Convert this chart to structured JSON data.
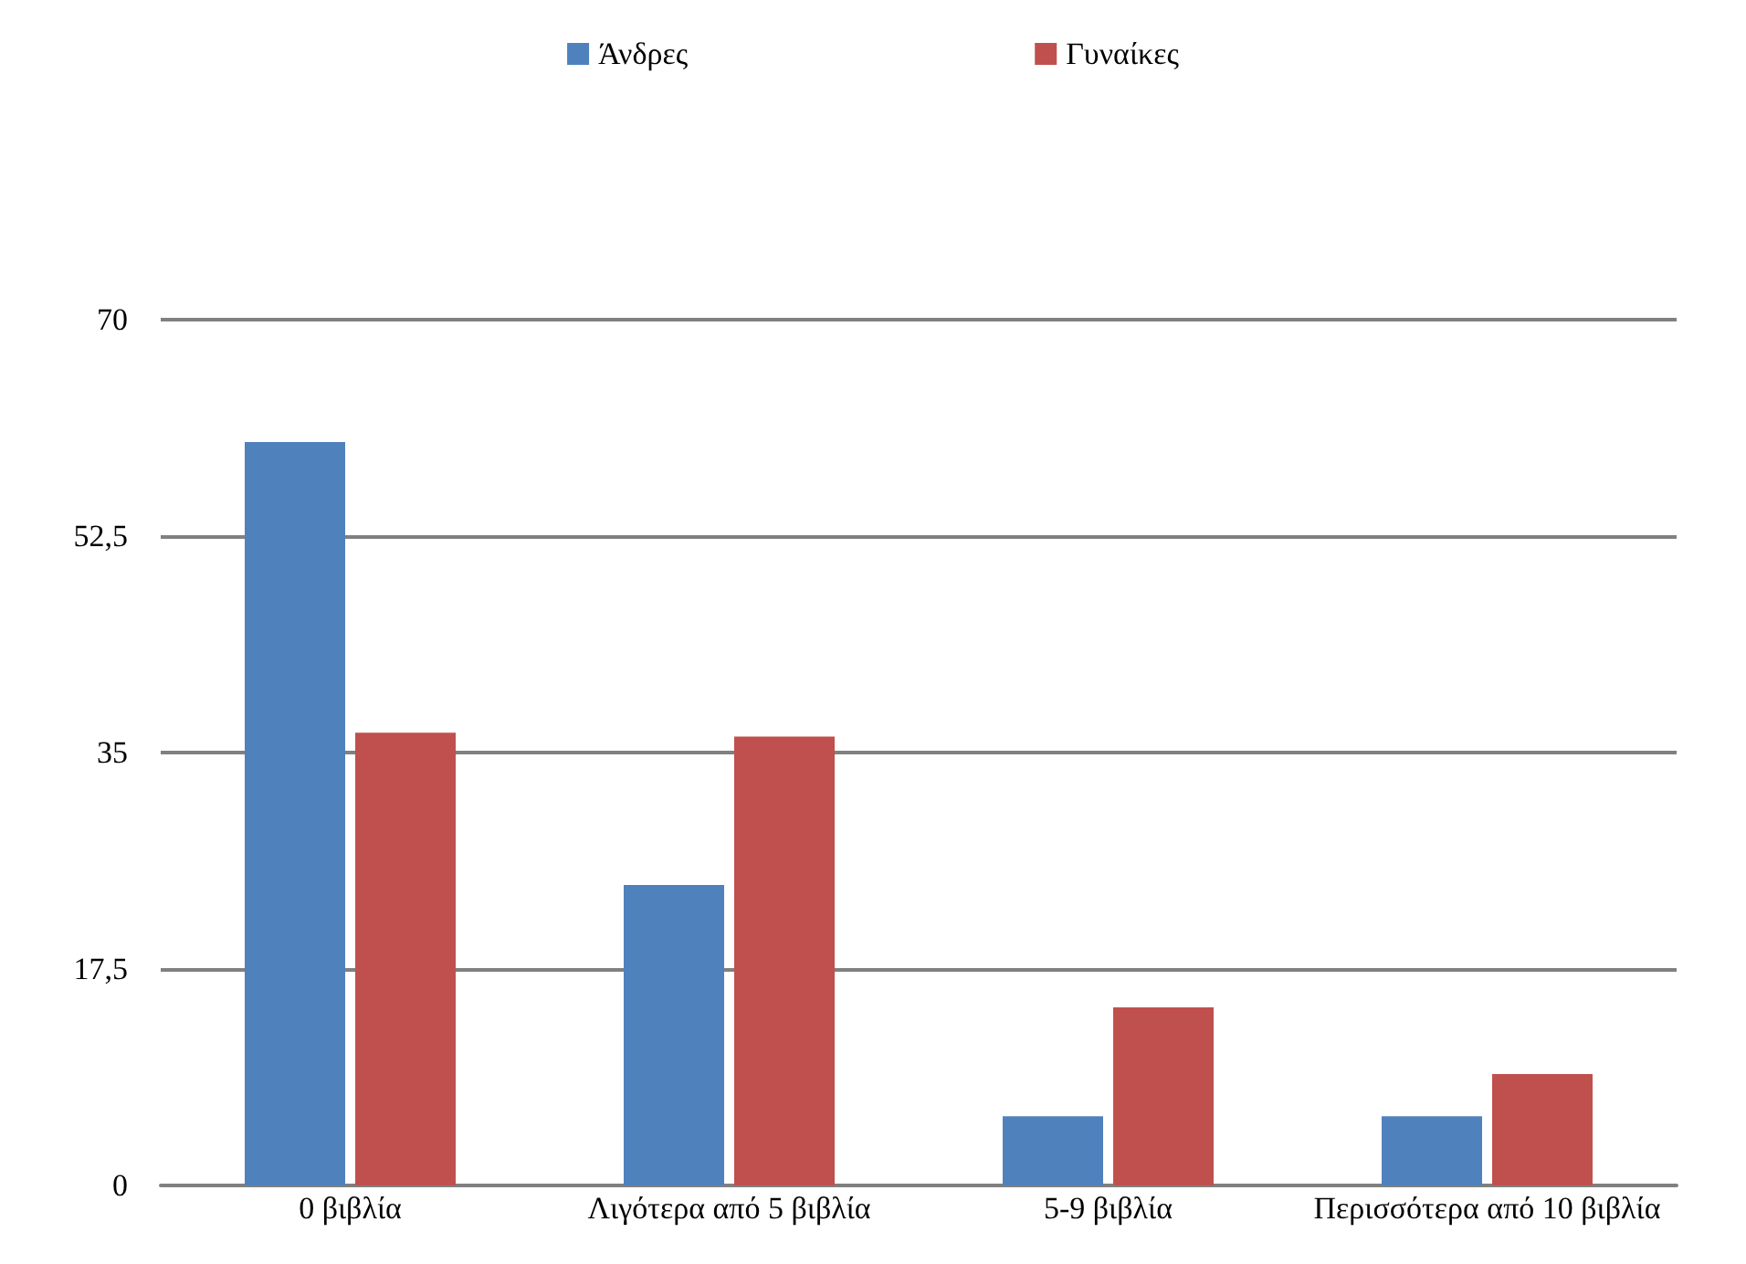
{
  "chart_data": {
    "type": "bar",
    "categories": [
      "0 βιβλία",
      "Λιγότερα από 5 βιβλία",
      "5-9 βιβλία",
      "Περισσότερα από 10 βιβλία"
    ],
    "series": [
      {
        "name": "Άνδρες",
        "color": "#4f81bd",
        "values": [
          60.1,
          24.3,
          5.6,
          5.6
        ]
      },
      {
        "name": "Γυναίκες",
        "color": "#c0504d",
        "values": [
          36.6,
          36.3,
          14.4,
          9
        ]
      }
    ],
    "ylim": [
      0,
      70
    ],
    "yticks": [
      0,
      {
        "value": 17.5,
        "label": "17,5"
      },
      35,
      {
        "value": 52.5,
        "label": "52,5"
      },
      70
    ],
    "grid": "y",
    "legend": "top"
  }
}
